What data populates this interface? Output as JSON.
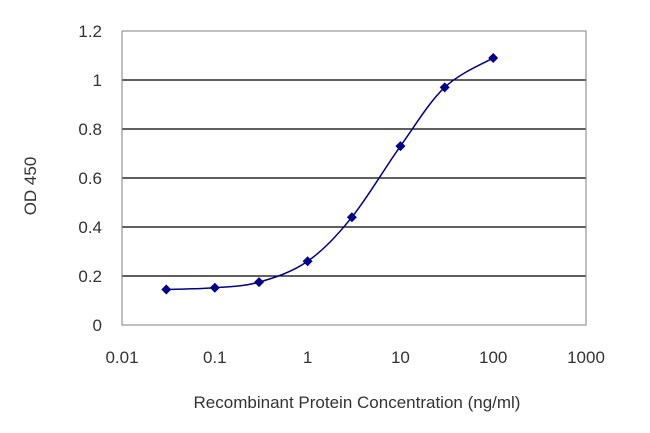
{
  "chart_data": {
    "type": "scatter",
    "xscale": "log",
    "xlabel": "Recombinant Protein Concentration (ng/ml)",
    "ylabel": "OD 450",
    "xlim": [
      0.01,
      1000
    ],
    "ylim": [
      0,
      1.2
    ],
    "xticks": [
      "0.01",
      "0.1",
      "1",
      "10",
      "100",
      "1000"
    ],
    "yticks": [
      "0",
      "0.2",
      "0.4",
      "0.6",
      "0.8",
      "1",
      "1.2"
    ],
    "grid": "horizontal",
    "series": [
      {
        "x": [
          0.03,
          0.1,
          0.3,
          1,
          3,
          10,
          30,
          100
        ],
        "y": [
          0.145,
          0.152,
          0.175,
          0.26,
          0.44,
          0.73,
          0.97,
          1.09
        ],
        "marker": "diamond",
        "color": "#00008b",
        "fit": "sigmoidal"
      }
    ],
    "colors": {
      "series": "#00008b",
      "grid": "#000000",
      "frame": "#808080"
    }
  }
}
